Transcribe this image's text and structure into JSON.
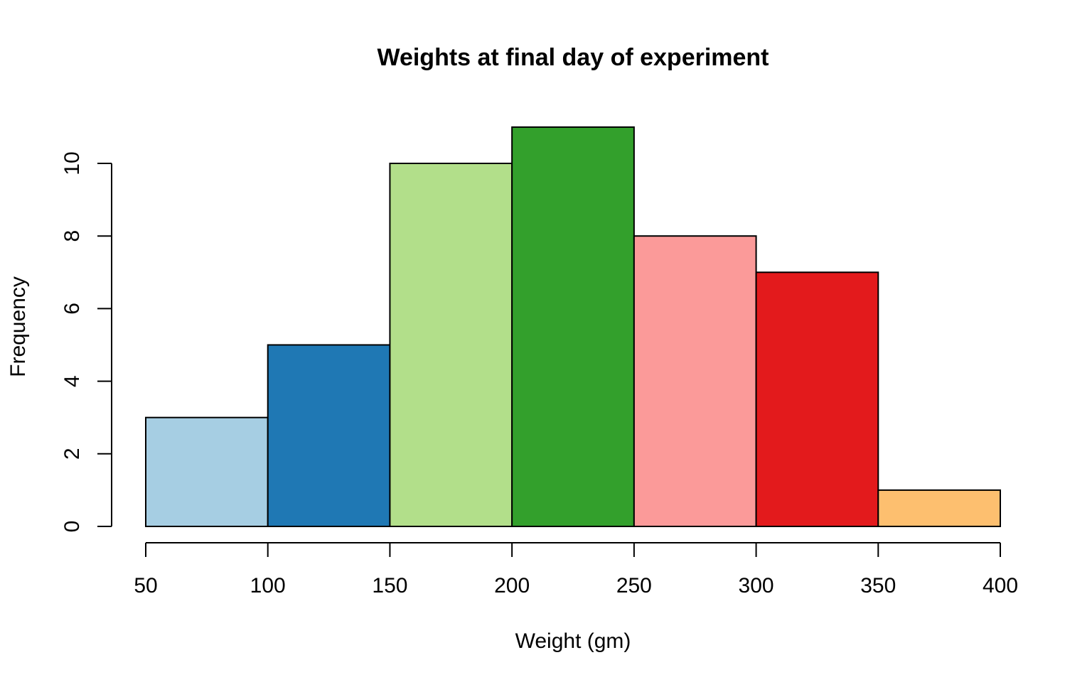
{
  "chart_data": {
    "type": "bar",
    "title": "Weights at final day of experiment",
    "xlabel": "Weight (gm)",
    "ylabel": "Frequency",
    "bins": [
      {
        "from": 50,
        "to": 100,
        "value": 3,
        "color": "#A6CEE3"
      },
      {
        "from": 100,
        "to": 150,
        "value": 5,
        "color": "#1F78B4"
      },
      {
        "from": 150,
        "to": 200,
        "value": 10,
        "color": "#B2DF8A"
      },
      {
        "from": 200,
        "to": 250,
        "value": 11,
        "color": "#33A02C"
      },
      {
        "from": 250,
        "to": 300,
        "value": 8,
        "color": "#FB9A99"
      },
      {
        "from": 300,
        "to": 350,
        "value": 7,
        "color": "#E31A1C"
      },
      {
        "from": 350,
        "to": 400,
        "value": 1,
        "color": "#FDBF6F"
      }
    ],
    "x_ticks": [
      50,
      100,
      150,
      200,
      250,
      300,
      350,
      400
    ],
    "y_ticks": [
      0,
      2,
      4,
      6,
      8,
      10
    ],
    "xlim": [
      50,
      400
    ],
    "ylim": [
      0,
      11
    ],
    "grid": false,
    "legend": "none"
  }
}
